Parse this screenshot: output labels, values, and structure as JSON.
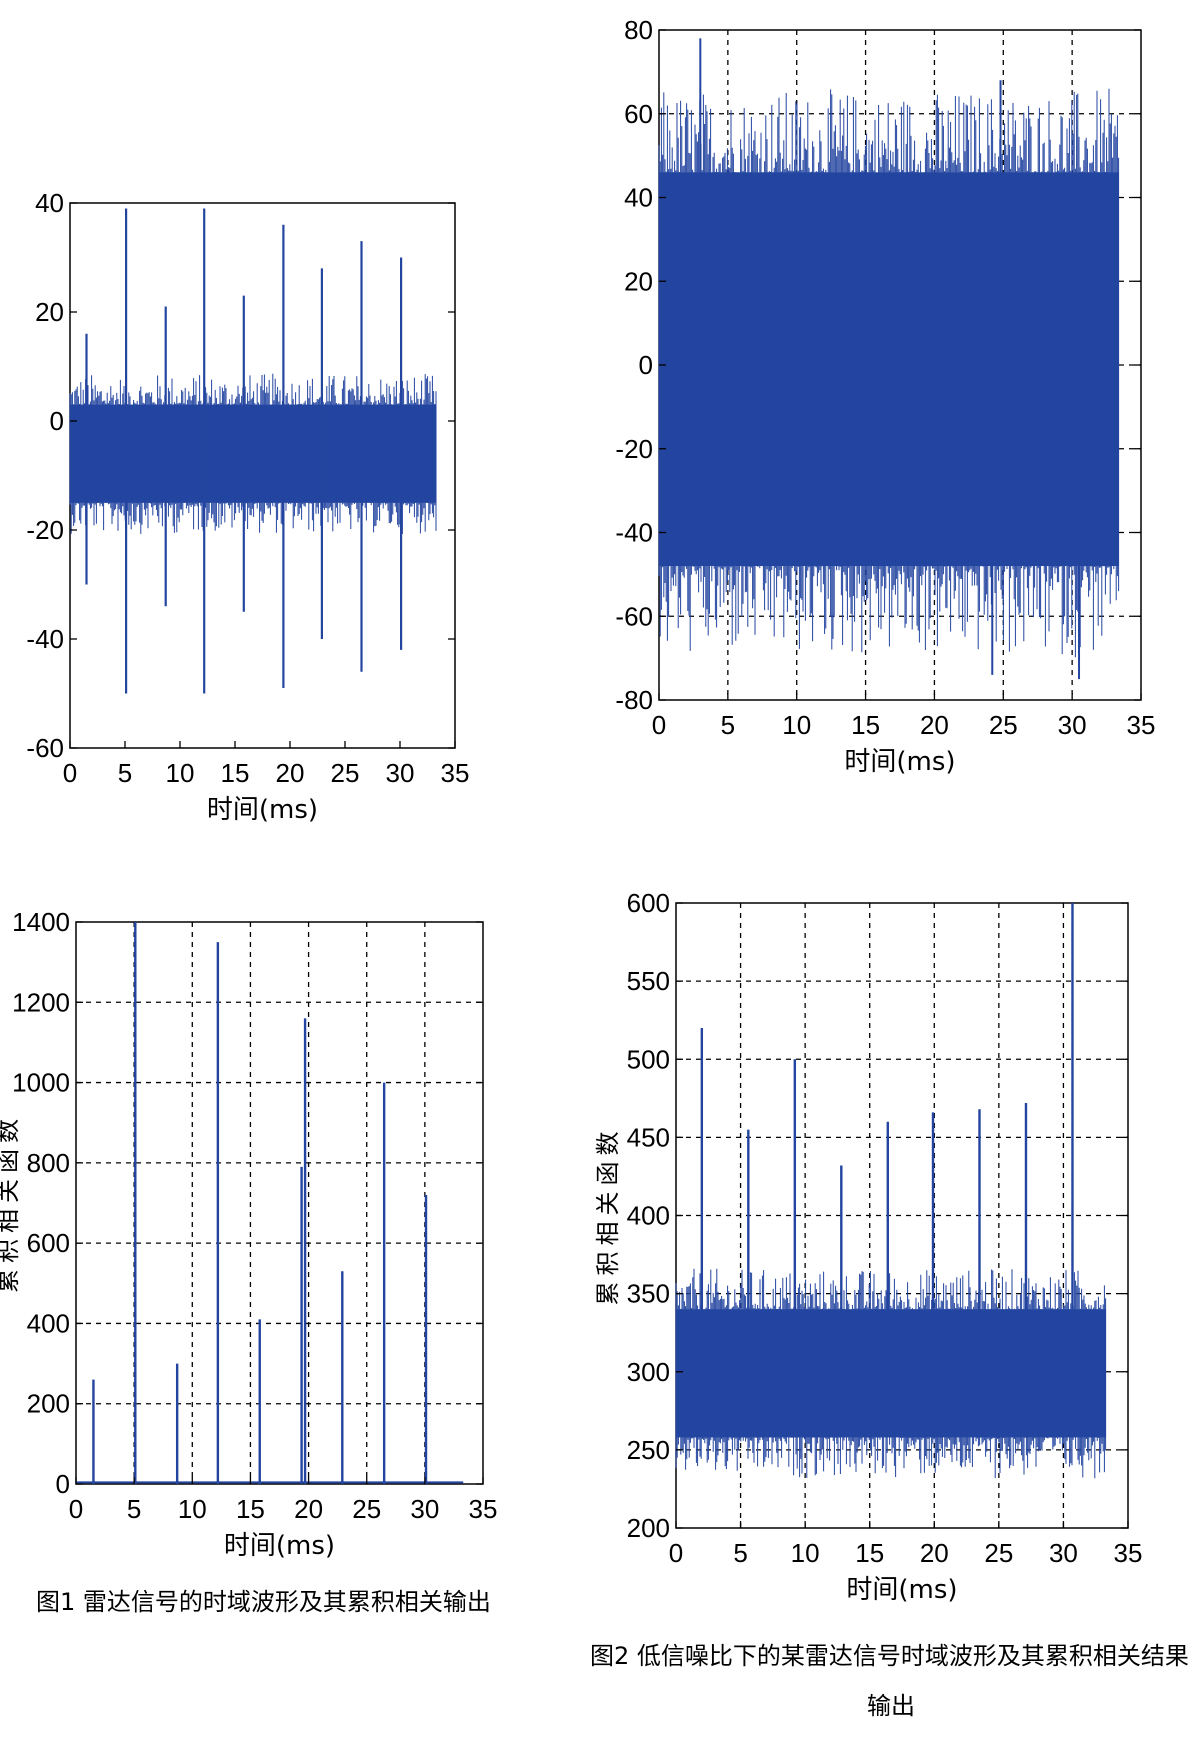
{
  "colors": {
    "signal": "#2345a0",
    "background": "#ffffff",
    "axis": "#000000",
    "grid": "#000000"
  },
  "chart_data": [
    {
      "id": "fig1_time",
      "type": "line",
      "xlabel": "时间(ms)",
      "ylabel": "",
      "xlim": [
        0,
        35
      ],
      "ylim": [
        -60,
        40
      ],
      "xticks": [
        0,
        5,
        10,
        15,
        20,
        25,
        30,
        35
      ],
      "yticks": [
        -60,
        -40,
        -20,
        0,
        20,
        40
      ],
      "grid": false,
      "series": [
        {
          "noise_band": {
            "x": [
              0,
              33.3
            ],
            "low": -15,
            "high": 3
          },
          "pulses": [
            {
              "x": 1.5,
              "min": -30,
              "max": 16
            },
            {
              "x": 5.1,
              "min": -50,
              "max": 39
            },
            {
              "x": 8.7,
              "min": -34,
              "max": 21
            },
            {
              "x": 12.2,
              "min": -50,
              "max": 39
            },
            {
              "x": 15.8,
              "min": -35,
              "max": 23
            },
            {
              "x": 19.4,
              "min": -49,
              "max": 36
            },
            {
              "x": 22.9,
              "min": -40,
              "max": 28
            },
            {
              "x": 26.5,
              "min": -46,
              "max": 33
            },
            {
              "x": 30.1,
              "min": -42,
              "max": 30
            }
          ]
        }
      ]
    },
    {
      "id": "fig2_time",
      "type": "line",
      "xlabel": "时间(ms)",
      "ylabel": "",
      "xlim": [
        0,
        35
      ],
      "ylim": [
        -80,
        80
      ],
      "xticks": [
        0,
        5,
        10,
        15,
        20,
        25,
        30,
        35
      ],
      "yticks": [
        -80,
        -60,
        -40,
        -20,
        0,
        20,
        40,
        60,
        80
      ],
      "grid": true,
      "series": [
        {
          "noise_band": {
            "x": [
              0,
              33.4
            ],
            "low": -48,
            "high": 46,
            "spike_max": 66,
            "spike_min": -70
          },
          "spikes": [
            {
              "x": 3.0,
              "max": 78
            },
            {
              "x": 24.8,
              "max": 68
            },
            {
              "x": 24.2,
              "min": -74
            },
            {
              "x": 30.5,
              "min": -75
            }
          ]
        }
      ]
    },
    {
      "id": "fig1_corr",
      "type": "bar",
      "xlabel": "时间(ms)",
      "ylabel": "累积相关函数",
      "xlim": [
        0,
        35
      ],
      "ylim": [
        0,
        1400
      ],
      "xticks": [
        0,
        5,
        10,
        15,
        20,
        25,
        30,
        35
      ],
      "yticks": [
        0,
        200,
        400,
        600,
        800,
        1000,
        1200,
        1400
      ],
      "grid": true,
      "x": [
        1.5,
        5.1,
        8.7,
        12.2,
        15.8,
        19.4,
        19.7,
        22.9,
        26.5,
        30.1
      ],
      "values": [
        260,
        1400,
        300,
        1350,
        410,
        790,
        1160,
        530,
        1000,
        720
      ]
    },
    {
      "id": "fig2_corr",
      "type": "line",
      "xlabel": "时间(ms)",
      "ylabel": "累积相关函数",
      "xlim": [
        0,
        35
      ],
      "ylim": [
        200,
        600
      ],
      "xticks": [
        0,
        5,
        10,
        15,
        20,
        25,
        30,
        35
      ],
      "yticks": [
        200,
        250,
        300,
        350,
        400,
        450,
        500,
        550,
        600
      ],
      "grid": true,
      "series": [
        {
          "noise_band": {
            "x": [
              0,
              33.3
            ],
            "low": 258,
            "high": 340
          },
          "peaks": [
            {
              "x": 2.0,
              "max": 520
            },
            {
              "x": 5.6,
              "max": 455
            },
            {
              "x": 9.2,
              "max": 500
            },
            {
              "x": 12.8,
              "max": 432
            },
            {
              "x": 16.4,
              "max": 460
            },
            {
              "x": 19.9,
              "max": 466
            },
            {
              "x": 23.5,
              "max": 468
            },
            {
              "x": 27.1,
              "max": 472
            },
            {
              "x": 30.7,
              "max": 600
            }
          ]
        }
      ]
    }
  ],
  "captions": {
    "fig1": "图1   雷达信号的时域波形及其累积相关输出",
    "fig2_line1": "图2  低信噪比下的某雷达信号时域波形及其累积相关结果",
    "fig2_line2": "输出"
  }
}
